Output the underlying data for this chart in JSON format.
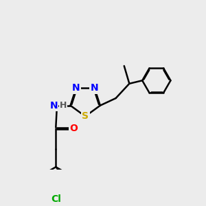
{
  "bg": "#ececec",
  "bond_color": "#000000",
  "bw": 1.8,
  "atom_colors": {
    "N": "#0000ff",
    "S": "#ccaa00",
    "O": "#ff0000",
    "Cl": "#00aa00",
    "C": "#000000",
    "H": "#555555"
  },
  "fs": 10,
  "dpi": 100,
  "figw": 3.0,
  "figh": 3.0
}
